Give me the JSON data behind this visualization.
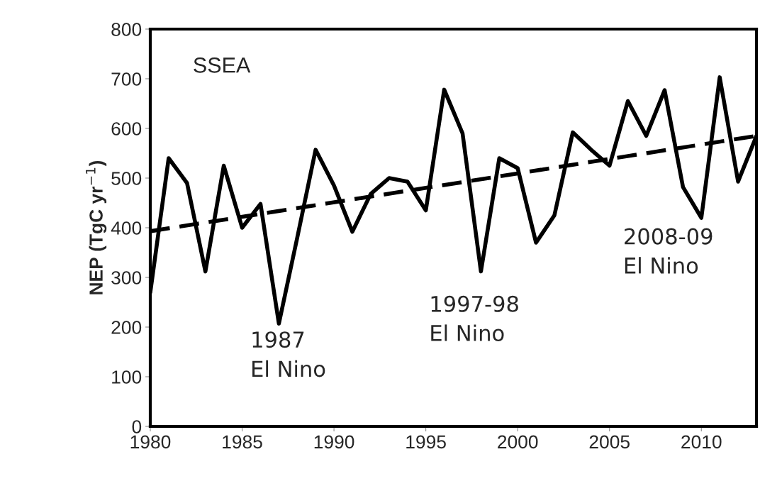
{
  "chart_data": {
    "type": "line",
    "ylabel": "NEP (TgC yr$^{−1}$)",
    "x": [
      1980,
      1981,
      1982,
      1983,
      1984,
      1985,
      1986,
      1987,
      1988,
      1989,
      1990,
      1991,
      1992,
      1993,
      1994,
      1995,
      1996,
      1997,
      1998,
      1999,
      2000,
      2001,
      2002,
      2003,
      2004,
      2005,
      2006,
      2007,
      2008,
      2009,
      2010,
      2011,
      2012,
      2013
    ],
    "series": [
      {
        "color": "#000000",
        "line_style": "solid",
        "values": [
          270,
          540,
          490,
          312,
          525,
          400,
          448,
          207,
          380,
          557,
          485,
          392,
          468,
          500,
          493,
          435,
          678,
          590,
          312,
          540,
          520,
          370,
          425,
          592,
          557,
          525,
          655,
          585,
          677,
          482,
          420,
          703,
          493,
          585
        ]
      },
      {
        "color": "#000000",
        "line_style": "dashed",
        "x": [
          1980,
          2013
        ],
        "values": [
          393,
          585
        ]
      }
    ],
    "annotations": [
      "SSEA",
      "1987\nEl Nino",
      "1997-98\nEl Nino",
      "2008-09\nEl Nino"
    ],
    "xlim": [
      1980,
      2013
    ],
    "ylim": [
      0,
      800
    ],
    "xticks": [
      1980,
      1985,
      1990,
      1995,
      2000,
      2005,
      2010
    ],
    "yticks": [
      0,
      100,
      200,
      300,
      400,
      500,
      600,
      700,
      800
    ],
    "grid": false,
    "legend": false
  }
}
